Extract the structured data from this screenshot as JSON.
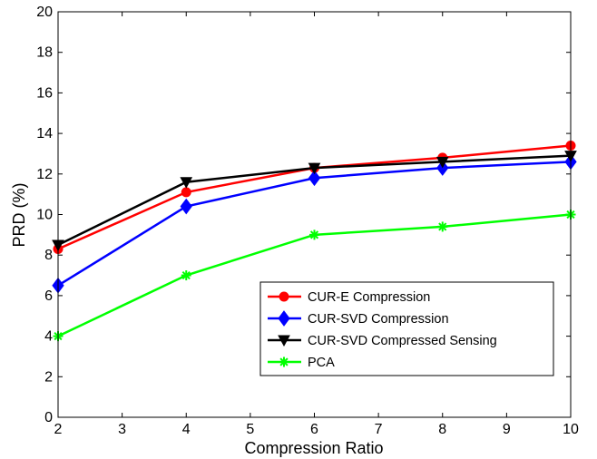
{
  "chart_data": {
    "type": "line",
    "xlabel": "Compression Ratio",
    "ylabel": "PRD (%)",
    "xlim": [
      2,
      10
    ],
    "ylim": [
      0,
      20
    ],
    "xticks": [
      2,
      3,
      4,
      5,
      6,
      7,
      8,
      9,
      10
    ],
    "yticks": [
      0,
      2,
      4,
      6,
      8,
      10,
      12,
      14,
      16,
      18,
      20
    ],
    "grid": false,
    "legend_position": "bottom-right",
    "x": [
      2,
      4,
      6,
      8,
      10
    ],
    "series": [
      {
        "name": "CUR-E Compression",
        "color": "#ff0000",
        "marker": "circle",
        "values": [
          8.3,
          11.1,
          12.3,
          12.8,
          13.4
        ]
      },
      {
        "name": "CUR-SVD Compression",
        "color": "#0000ff",
        "marker": "diamond",
        "values": [
          6.5,
          10.4,
          11.8,
          12.3,
          12.6
        ]
      },
      {
        "name": "CUR-SVD Compressed Sensing",
        "color": "#000000",
        "marker": "triangle-down",
        "values": [
          8.5,
          11.6,
          12.3,
          12.6,
          12.9
        ]
      },
      {
        "name": "PCA",
        "color": "#00ff00",
        "marker": "asterisk",
        "values": [
          4.0,
          7.0,
          9.0,
          9.4,
          10.0
        ]
      }
    ]
  }
}
